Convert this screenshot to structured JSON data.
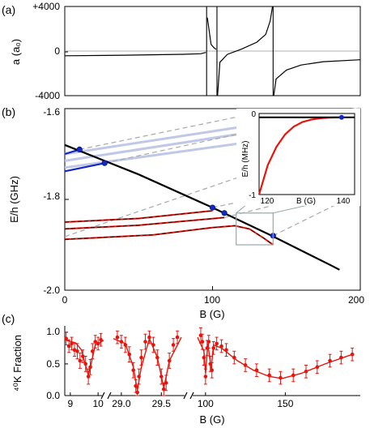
{
  "panel_labels": {
    "a": "(a)",
    "b": "(b)",
    "c": "(c)"
  },
  "colors": {
    "red": "#e8140c",
    "blue": "#1428c8",
    "lightblue": "#c0c8e8",
    "dash": "#a8a8a8",
    "black": "#000000"
  },
  "chart_data": [
    {
      "panel": "(a)",
      "type": "line",
      "title": "",
      "xlabel": "",
      "ylabel": "a (a₀)",
      "yticks": [
        "+4000",
        "0",
        "-4000"
      ],
      "ylim": [
        -4000,
        4000
      ],
      "xlim": [
        0,
        200
      ],
      "grid": false,
      "resonances_G": [
        96.0,
        103.0,
        141.0
      ],
      "series": [
        {
          "x": [
            0,
            40,
            80,
            92,
            95.5
          ],
          "y": [
            -420,
            -370,
            -290,
            -240,
            -120
          ]
        },
        {
          "x": [
            96.5,
            99,
            101,
            102,
            102.6
          ],
          "y": [
            3000,
            600,
            300,
            200,
            150
          ]
        },
        {
          "x": [
            103.4,
            105,
            110,
            120,
            130,
            136,
            139,
            140.6
          ],
          "y": [
            -4000,
            -1000,
            -300,
            200,
            800,
            1500,
            2700,
            4000
          ]
        },
        {
          "x": [
            141.4,
            143,
            150,
            160,
            175,
            200
          ],
          "y": [
            -4000,
            -2500,
            -1700,
            -1250,
            -950,
            -780
          ]
        }
      ]
    },
    {
      "panel": "(b)",
      "type": "line",
      "title": "",
      "xlabel": "B (G)",
      "ylabel": "E/h (GHz)",
      "xticks": [
        "0",
        "100",
        "200"
      ],
      "yticks": [
        "-1.6",
        "-1.8",
        "-2.0"
      ],
      "xlim": [
        0,
        200
      ],
      "ylim": [
        -2.0,
        -1.6
      ],
      "grid": false,
      "series": [
        {
          "style": "black",
          "x": [
            0,
            50,
            100,
            140,
            180,
            186
          ],
          "y": [
            -1.68,
            -1.745,
            -1.818,
            -1.88,
            -1.945,
            -1.955
          ]
        },
        {
          "style": "lightblue",
          "x": [
            0,
            200
          ],
          "y": [
            -1.7,
            -1.6
          ]
        },
        {
          "style": "lightblue",
          "x": [
            0,
            200
          ],
          "y": [
            -1.715,
            -1.615
          ]
        },
        {
          "style": "lightblue",
          "x": [
            0,
            200
          ],
          "y": [
            -1.73,
            -1.64
          ]
        },
        {
          "style": "blue",
          "x": [
            0,
            10
          ],
          "y": [
            -1.7,
            -1.69
          ]
        },
        {
          "style": "blue",
          "x": [
            0,
            27
          ],
          "y": [
            -1.738,
            -1.72
          ]
        },
        {
          "style": "red",
          "x": [
            0,
            50,
            100
          ],
          "y": [
            -1.85,
            -1.842,
            -1.825
          ]
        },
        {
          "style": "red",
          "x": [
            0,
            50,
            108
          ],
          "y": [
            -1.865,
            -1.857,
            -1.84
          ]
        },
        {
          "style": "red",
          "x": [
            0,
            60,
            100,
            115,
            125,
            135,
            141
          ],
          "y": [
            -1.888,
            -1.878,
            -1.862,
            -1.858,
            -1.865,
            -1.886,
            -1.9
          ]
        },
        {
          "style": "dash",
          "x": [
            0,
            200
          ],
          "y": [
            -1.882,
            -1.66
          ]
        },
        {
          "style": "dash",
          "x": [
            100,
            200
          ],
          "y": [
            -1.818,
            -1.75
          ]
        },
        {
          "style": "dash",
          "x": [
            108,
            200
          ],
          "y": [
            -1.84,
            -1.765
          ]
        },
        {
          "style": "dash",
          "x": [
            141,
            200
          ],
          "y": [
            -1.88,
            -1.785
          ]
        },
        {
          "style": "dash",
          "x": [
            10,
            120
          ],
          "y": [
            -1.69,
            -1.616
          ]
        },
        {
          "style": "dash",
          "x": [
            27,
            140
          ],
          "y": [
            -1.72,
            -1.64
          ]
        }
      ],
      "markers": [
        {
          "x": 10,
          "y": -1.69
        },
        {
          "x": 27,
          "y": -1.72
        },
        {
          "x": 100,
          "y": -1.818
        },
        {
          "x": 108,
          "y": -1.83
        },
        {
          "x": 141,
          "y": -1.88
        }
      ],
      "inset": {
        "xlabel": "B (G)",
        "ylabel": "E/h (MHz)",
        "xticks": [
          "120",
          "140"
        ],
        "yticks": [
          "0",
          "-1"
        ],
        "xlim": [
          120,
          142
        ],
        "ylim": [
          -1,
          0.05
        ],
        "series": [
          {
            "style": "red",
            "x": [
              120,
              122,
              124,
              126,
              128,
              130,
              132,
              134,
              136,
              138,
              139
            ],
            "y": [
              -1.0,
              -0.62,
              -0.38,
              -0.22,
              -0.12,
              -0.06,
              -0.03,
              -0.012,
              -0.004,
              -0.001,
              0
            ]
          },
          {
            "style": "black",
            "x": [
              120,
              142
            ],
            "y": [
              0,
              0
            ]
          }
        ],
        "marker": {
          "x": 139,
          "y": 0
        }
      }
    },
    {
      "panel": "(c)",
      "type": "scatter",
      "title": "",
      "xlabel": "B (G)",
      "ylabel": "⁴⁰K Fraction",
      "ylim": [
        0,
        1.1
      ],
      "yticks": [
        "0.0",
        "0.5",
        "1.0"
      ],
      "grid": false,
      "segments": [
        {
          "xlim": [
            8.8,
            10.2
          ],
          "xticks": [
            "9",
            "10"
          ],
          "points": [
            {
              "x": 8.85,
              "y": 0.9,
              "e": 0.1
            },
            {
              "x": 8.95,
              "y": 0.78,
              "e": 0.1
            },
            {
              "x": 9.05,
              "y": 0.82,
              "e": 0.1
            },
            {
              "x": 9.15,
              "y": 0.72,
              "e": 0.1
            },
            {
              "x": 9.25,
              "y": 0.7,
              "e": 0.12
            },
            {
              "x": 9.35,
              "y": 0.55,
              "e": 0.12
            },
            {
              "x": 9.45,
              "y": 0.62,
              "e": 0.1
            },
            {
              "x": 9.55,
              "y": 0.5,
              "e": 0.12
            },
            {
              "x": 9.65,
              "y": 0.3,
              "e": 0.12
            },
            {
              "x": 9.72,
              "y": 0.45,
              "e": 0.12
            },
            {
              "x": 9.8,
              "y": 0.7,
              "e": 0.12
            },
            {
              "x": 9.9,
              "y": 0.85,
              "e": 0.1
            },
            {
              "x": 10.0,
              "y": 0.82,
              "e": 0.1
            },
            {
              "x": 10.1,
              "y": 0.88,
              "e": 0.1
            }
          ],
          "fit": {
            "x": [
              8.8,
              9.2,
              9.4,
              9.55,
              9.65,
              9.75,
              9.9,
              10.2
            ],
            "y": [
              0.88,
              0.83,
              0.72,
              0.48,
              0.32,
              0.5,
              0.8,
              0.87
            ]
          }
        },
        {
          "xlim": [
            28.9,
            29.75
          ],
          "xticks": [
            "29.0",
            "29.5"
          ],
          "points": [
            {
              "x": 28.95,
              "y": 0.92,
              "e": 0.1
            },
            {
              "x": 29.0,
              "y": 0.85,
              "e": 0.1
            },
            {
              "x": 29.05,
              "y": 0.8,
              "e": 0.12
            },
            {
              "x": 29.1,
              "y": 0.65,
              "e": 0.12
            },
            {
              "x": 29.15,
              "y": 0.4,
              "e": 0.12
            },
            {
              "x": 29.18,
              "y": 0.15,
              "e": 0.1
            },
            {
              "x": 29.2,
              "y": 0.05,
              "e": 0.08
            },
            {
              "x": 29.22,
              "y": 0.3,
              "e": 0.12
            },
            {
              "x": 29.25,
              "y": 0.6,
              "e": 0.12
            },
            {
              "x": 29.3,
              "y": 0.85,
              "e": 0.12
            },
            {
              "x": 29.35,
              "y": 0.92,
              "e": 0.1
            },
            {
              "x": 29.4,
              "y": 0.8,
              "e": 0.12
            },
            {
              "x": 29.45,
              "y": 0.6,
              "e": 0.12
            },
            {
              "x": 29.5,
              "y": 0.3,
              "e": 0.12
            },
            {
              "x": 29.53,
              "y": 0.1,
              "e": 0.1
            },
            {
              "x": 29.56,
              "y": 0.2,
              "e": 0.12
            },
            {
              "x": 29.6,
              "y": 0.55,
              "e": 0.12
            },
            {
              "x": 29.65,
              "y": 0.8,
              "e": 0.1
            },
            {
              "x": 29.7,
              "y": 0.92,
              "e": 0.1
            }
          ],
          "fit": {
            "x": [
              28.9,
              29.05,
              29.15,
              29.2,
              29.25,
              29.35,
              29.45,
              29.53,
              29.6,
              29.75
            ],
            "y": [
              0.9,
              0.82,
              0.45,
              0.08,
              0.45,
              0.9,
              0.6,
              0.12,
              0.55,
              0.92
            ]
          }
        },
        {
          "xlim": [
            95,
            197
          ],
          "xticks": [
            "100",
            "150"
          ],
          "points": [
            {
              "x": 97,
              "y": 0.95,
              "e": 0.12
            },
            {
              "x": 98,
              "y": 0.85,
              "e": 0.12
            },
            {
              "x": 99,
              "y": 0.6,
              "e": 0.12
            },
            {
              "x": 100,
              "y": 0.3,
              "e": 0.12
            },
            {
              "x": 101,
              "y": 0.75,
              "e": 0.12
            },
            {
              "x": 102,
              "y": 0.85,
              "e": 0.1
            },
            {
              "x": 103,
              "y": 0.5,
              "e": 0.12
            },
            {
              "x": 104,
              "y": 0.4,
              "e": 0.12
            },
            {
              "x": 105,
              "y": 0.75,
              "e": 0.1
            },
            {
              "x": 107,
              "y": 0.82,
              "e": 0.1
            },
            {
              "x": 110,
              "y": 0.78,
              "e": 0.1
            },
            {
              "x": 113,
              "y": 0.72,
              "e": 0.1
            },
            {
              "x": 118,
              "y": 0.6,
              "e": 0.1
            },
            {
              "x": 125,
              "y": 0.48,
              "e": 0.1
            },
            {
              "x": 132,
              "y": 0.4,
              "e": 0.1
            },
            {
              "x": 140,
              "y": 0.32,
              "e": 0.1
            },
            {
              "x": 147,
              "y": 0.28,
              "e": 0.1
            },
            {
              "x": 155,
              "y": 0.32,
              "e": 0.1
            },
            {
              "x": 163,
              "y": 0.38,
              "e": 0.1
            },
            {
              "x": 170,
              "y": 0.45,
              "e": 0.1
            },
            {
              "x": 178,
              "y": 0.55,
              "e": 0.1
            },
            {
              "x": 185,
              "y": 0.6,
              "e": 0.1
            },
            {
              "x": 192,
              "y": 0.65,
              "e": 0.1
            }
          ],
          "fit": {
            "x": [
              95,
              99,
              100,
              101.5,
              103.5,
              105,
              110,
              120,
              130,
              140,
              148,
              160,
              175,
              192
            ],
            "y": [
              0.92,
              0.7,
              0.35,
              0.82,
              0.42,
              0.8,
              0.75,
              0.55,
              0.4,
              0.3,
              0.27,
              0.35,
              0.5,
              0.65
            ]
          }
        }
      ]
    }
  ]
}
